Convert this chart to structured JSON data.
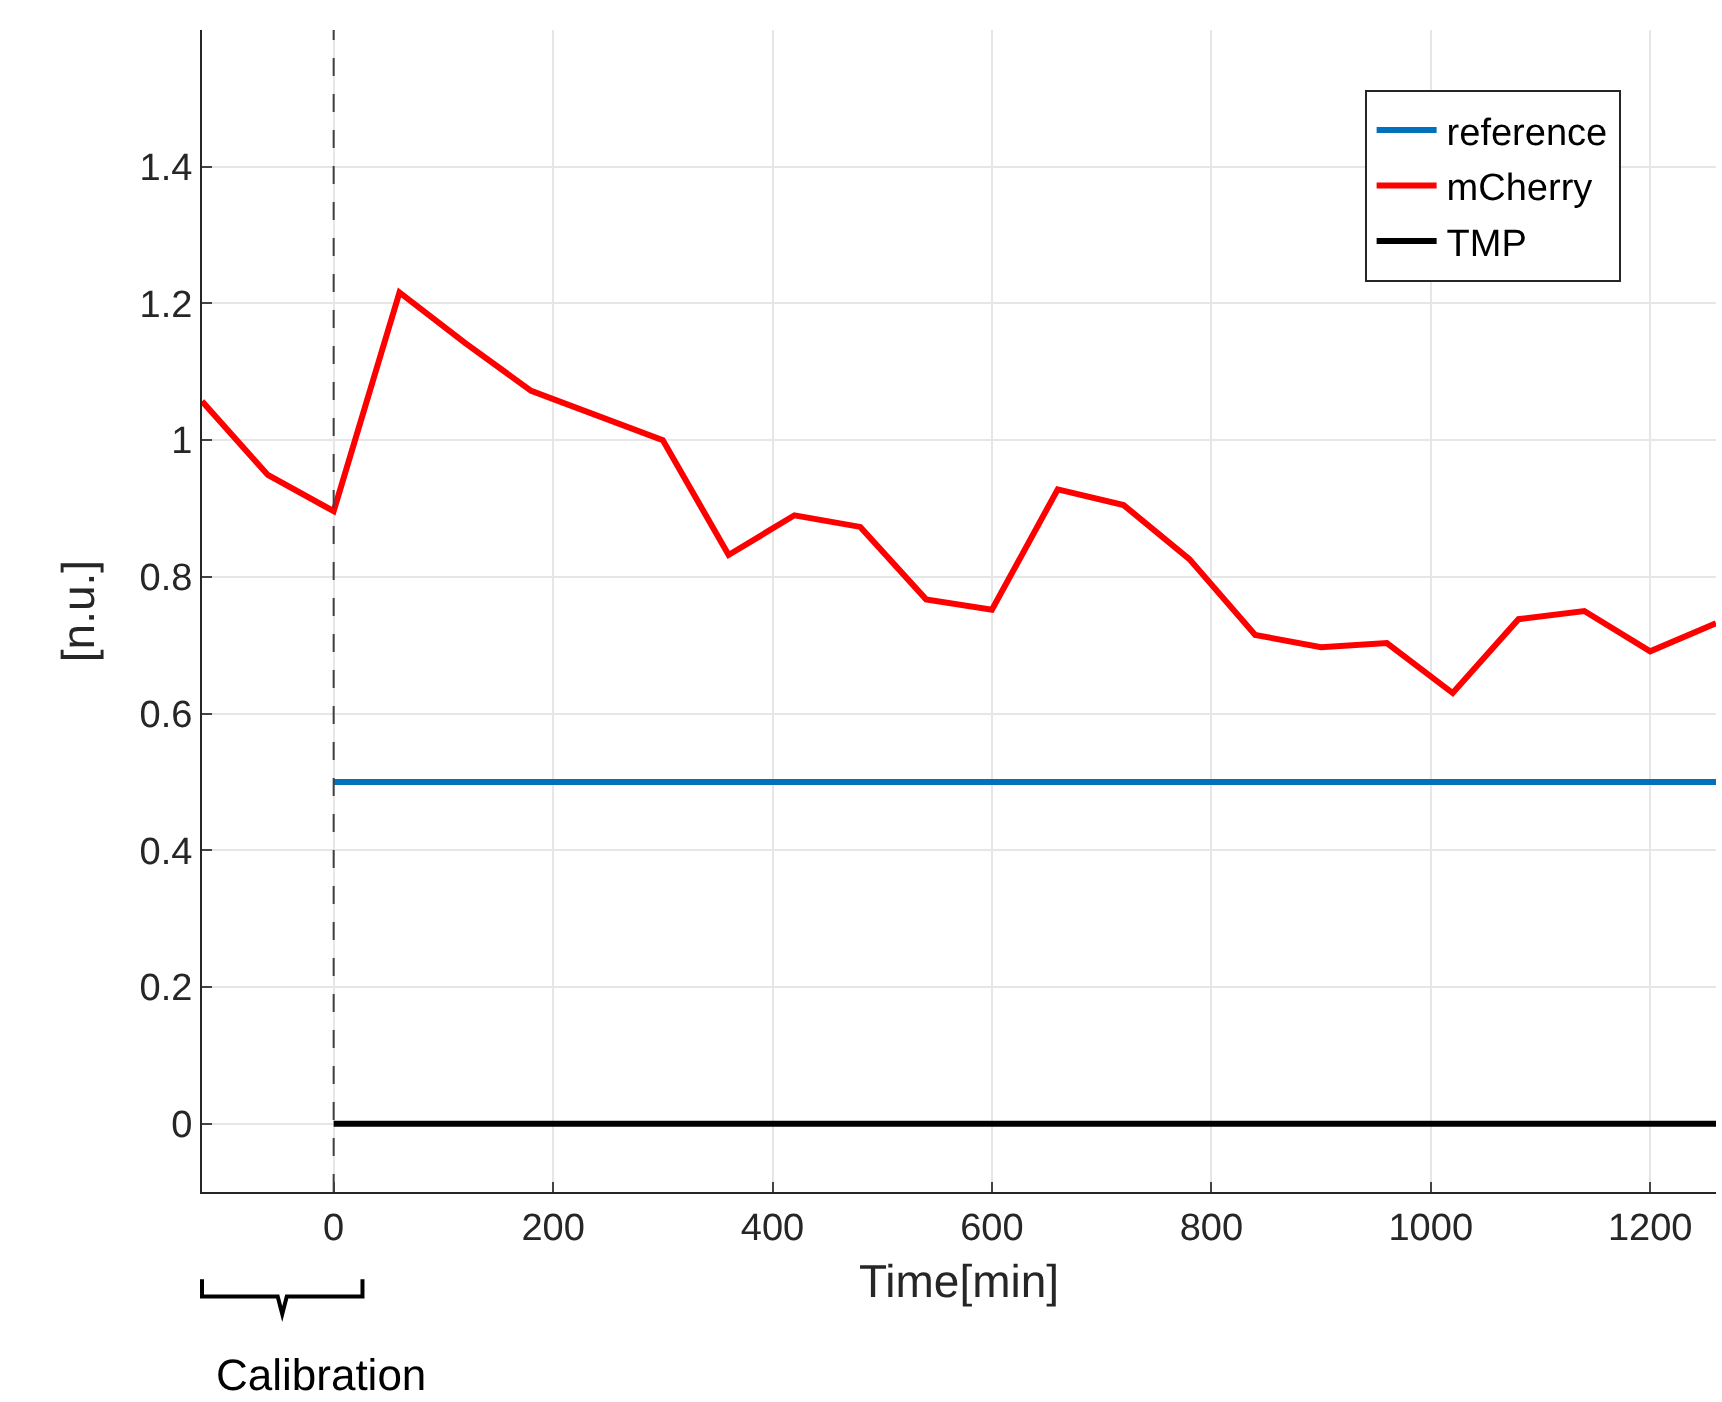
{
  "chart_data": {
    "type": "line",
    "xlabel": "Time[min]",
    "ylabel": "[n.u.]",
    "xlim": [
      -120,
      1260
    ],
    "ylim": [
      -0.1,
      1.6
    ],
    "xticks": [
      0,
      200,
      400,
      600,
      800,
      1000,
      1200
    ],
    "yticks": [
      0,
      0.2,
      0.4,
      0.6,
      0.8,
      1,
      1.2,
      1.4
    ],
    "grid": true,
    "legend": "top right",
    "line_style": "solid",
    "series": [
      {
        "name": "reference",
        "color": "#0072bd",
        "x": [
          0,
          1260
        ],
        "values": [
          0.5,
          0.5
        ]
      },
      {
        "name": "mCherry",
        "color": "#ff0000",
        "x": [
          -120,
          -60,
          0,
          60,
          120,
          180,
          300,
          360,
          420,
          480,
          540,
          600,
          660,
          720,
          780,
          840,
          900,
          960,
          1020,
          1080,
          1140,
          1200,
          1260
        ],
        "values": [
          1.057,
          0.949,
          0.896,
          1.216,
          1.142,
          1.072,
          1.0,
          0.832,
          0.89,
          0.873,
          0.767,
          0.752,
          0.928,
          0.905,
          0.826,
          0.715,
          0.697,
          0.703,
          0.63,
          0.738,
          0.75,
          0.691,
          0.732
        ]
      },
      {
        "name": "TMP",
        "color": "#000000",
        "x": [
          0,
          1260
        ],
        "values": [
          0,
          0
        ]
      }
    ],
    "ref_lines": [
      {
        "axis": "x",
        "value": 0,
        "label": null,
        "color": "#404040",
        "line_style": "dashed"
      }
    ],
    "annotations": [
      "Calibration"
    ]
  }
}
